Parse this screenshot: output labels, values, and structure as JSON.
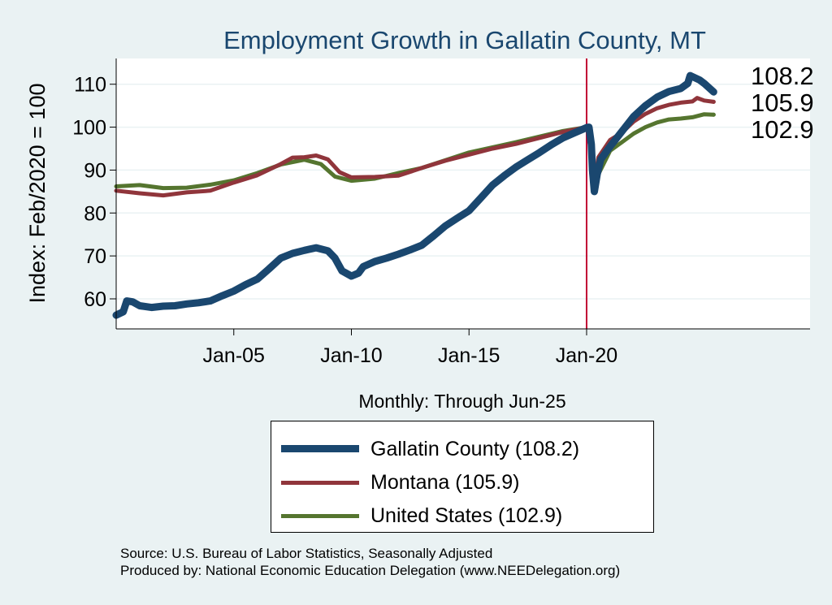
{
  "chart_data": {
    "type": "line",
    "title": "Employment Growth in Gallatin  County, MT",
    "ylabel": "Index: Feb/2020 = 100",
    "xlabel": "Monthly: Through Jun-25",
    "ylim": [
      53,
      116
    ],
    "xlim": [
      2000.0,
      2029.5
    ],
    "yticks": [
      60,
      70,
      80,
      90,
      100,
      110
    ],
    "xticks": [
      {
        "label": "Jan-05",
        "value": 2005.0
      },
      {
        "label": "Jan-10",
        "value": 2010.0
      },
      {
        "label": "Jan-15",
        "value": 2015.0
      },
      {
        "label": "Jan-20",
        "value": 2020.0
      }
    ],
    "vline": 2020.0,
    "grid": true,
    "series": [
      {
        "name": "Gallatin  County",
        "legend": "Gallatin  County (108.2)",
        "end_label": "108.2",
        "color": "#1a476f",
        "width": 9,
        "points": [
          [
            2000.0,
            56.2
          ],
          [
            2000.3,
            57.0
          ],
          [
            2000.45,
            59.5
          ],
          [
            2000.7,
            59.3
          ],
          [
            2001.0,
            58.4
          ],
          [
            2001.5,
            58.0
          ],
          [
            2002.0,
            58.3
          ],
          [
            2002.5,
            58.4
          ],
          [
            2003.0,
            58.8
          ],
          [
            2003.5,
            59.1
          ],
          [
            2004.0,
            59.5
          ],
          [
            2004.5,
            60.7
          ],
          [
            2005.0,
            61.8
          ],
          [
            2005.5,
            63.3
          ],
          [
            2006.0,
            64.6
          ],
          [
            2006.5,
            67.0
          ],
          [
            2007.0,
            69.5
          ],
          [
            2007.5,
            70.6
          ],
          [
            2008.0,
            71.3
          ],
          [
            2008.5,
            71.9
          ],
          [
            2009.0,
            71.2
          ],
          [
            2009.3,
            69.5
          ],
          [
            2009.6,
            66.5
          ],
          [
            2010.0,
            65.3
          ],
          [
            2010.3,
            66.0
          ],
          [
            2010.5,
            67.5
          ],
          [
            2011.0,
            68.7
          ],
          [
            2011.5,
            69.5
          ],
          [
            2012.0,
            70.4
          ],
          [
            2012.5,
            71.4
          ],
          [
            2013.0,
            72.5
          ],
          [
            2013.5,
            74.7
          ],
          [
            2014.0,
            77.0
          ],
          [
            2014.5,
            78.8
          ],
          [
            2015.0,
            80.5
          ],
          [
            2015.5,
            83.5
          ],
          [
            2016.0,
            86.5
          ],
          [
            2016.5,
            88.7
          ],
          [
            2017.0,
            90.7
          ],
          [
            2017.5,
            92.4
          ],
          [
            2018.0,
            94.1
          ],
          [
            2018.5,
            95.9
          ],
          [
            2019.0,
            97.5
          ],
          [
            2019.5,
            98.7
          ],
          [
            2020.0,
            99.9
          ],
          [
            2020.1,
            100.0
          ],
          [
            2020.2,
            96.0
          ],
          [
            2020.25,
            90.0
          ],
          [
            2020.33,
            85.0
          ],
          [
            2020.45,
            89.0
          ],
          [
            2020.6,
            92.5
          ],
          [
            2021.0,
            95.5
          ],
          [
            2021.5,
            99.0
          ],
          [
            2022.0,
            102.5
          ],
          [
            2022.5,
            105.0
          ],
          [
            2023.0,
            107.0
          ],
          [
            2023.5,
            108.3
          ],
          [
            2024.0,
            109.0
          ],
          [
            2024.3,
            110.2
          ],
          [
            2024.4,
            112.0
          ],
          [
            2024.8,
            111.0
          ],
          [
            2025.0,
            110.2
          ],
          [
            2025.4,
            108.2
          ]
        ]
      },
      {
        "name": "Montana",
        "legend": "Montana (105.9)",
        "end_label": "105.9",
        "color": "#90353b",
        "width": 5,
        "points": [
          [
            2000.0,
            85.2
          ],
          [
            2001.0,
            84.6
          ],
          [
            2002.0,
            84.1
          ],
          [
            2003.0,
            84.8
          ],
          [
            2004.0,
            85.2
          ],
          [
            2005.0,
            87.1
          ],
          [
            2006.0,
            88.8
          ],
          [
            2007.0,
            91.4
          ],
          [
            2007.5,
            92.9
          ],
          [
            2008.0,
            93.0
          ],
          [
            2008.5,
            93.4
          ],
          [
            2009.0,
            92.5
          ],
          [
            2009.5,
            89.5
          ],
          [
            2010.0,
            88.3
          ],
          [
            2011.0,
            88.4
          ],
          [
            2012.0,
            88.7
          ],
          [
            2013.0,
            90.5
          ],
          [
            2014.0,
            92.2
          ],
          [
            2015.0,
            93.6
          ],
          [
            2016.0,
            95.0
          ],
          [
            2017.0,
            96.1
          ],
          [
            2018.0,
            97.5
          ],
          [
            2019.0,
            98.9
          ],
          [
            2020.0,
            100.0
          ],
          [
            2020.15,
            99.5
          ],
          [
            2020.25,
            92.0
          ],
          [
            2020.33,
            86.5
          ],
          [
            2020.5,
            93.0
          ],
          [
            2021.0,
            97.0
          ],
          [
            2021.5,
            98.7
          ],
          [
            2022.0,
            101.3
          ],
          [
            2022.5,
            103.1
          ],
          [
            2023.0,
            104.4
          ],
          [
            2023.5,
            105.2
          ],
          [
            2024.0,
            105.7
          ],
          [
            2024.5,
            106.0
          ],
          [
            2024.7,
            106.8
          ],
          [
            2025.0,
            106.2
          ],
          [
            2025.4,
            105.9
          ]
        ]
      },
      {
        "name": "United States",
        "legend": "United States (102.9)",
        "end_label": "102.9",
        "color": "#55752f",
        "width": 5,
        "points": [
          [
            2000.0,
            86.2
          ],
          [
            2001.0,
            86.5
          ],
          [
            2002.0,
            85.8
          ],
          [
            2003.0,
            85.9
          ],
          [
            2004.0,
            86.6
          ],
          [
            2005.0,
            87.6
          ],
          [
            2006.0,
            89.3
          ],
          [
            2007.0,
            91.3
          ],
          [
            2008.0,
            92.4
          ],
          [
            2008.7,
            91.4
          ],
          [
            2009.3,
            88.5
          ],
          [
            2010.0,
            87.5
          ],
          [
            2011.0,
            88.0
          ],
          [
            2012.0,
            89.3
          ],
          [
            2013.0,
            90.5
          ],
          [
            2014.0,
            92.3
          ],
          [
            2015.0,
            94.1
          ],
          [
            2016.0,
            95.3
          ],
          [
            2017.0,
            96.5
          ],
          [
            2018.0,
            97.8
          ],
          [
            2019.0,
            99.1
          ],
          [
            2020.0,
            100.0
          ],
          [
            2020.15,
            99.4
          ],
          [
            2020.25,
            89.0
          ],
          [
            2020.33,
            85.4
          ],
          [
            2020.5,
            89.0
          ],
          [
            2021.0,
            94.5
          ],
          [
            2021.5,
            96.5
          ],
          [
            2022.0,
            98.5
          ],
          [
            2022.5,
            100.0
          ],
          [
            2023.0,
            101.1
          ],
          [
            2023.5,
            101.8
          ],
          [
            2024.0,
            102.0
          ],
          [
            2024.5,
            102.3
          ],
          [
            2025.0,
            103.0
          ],
          [
            2025.4,
            102.9
          ]
        ]
      }
    ]
  },
  "footer": {
    "source": "Source: U.S. Bureau of Labor Statistics, Seasonally Adjusted",
    "producer": "Produced by: National Economic Education Delegation (www.NEEDelegation.org)"
  }
}
